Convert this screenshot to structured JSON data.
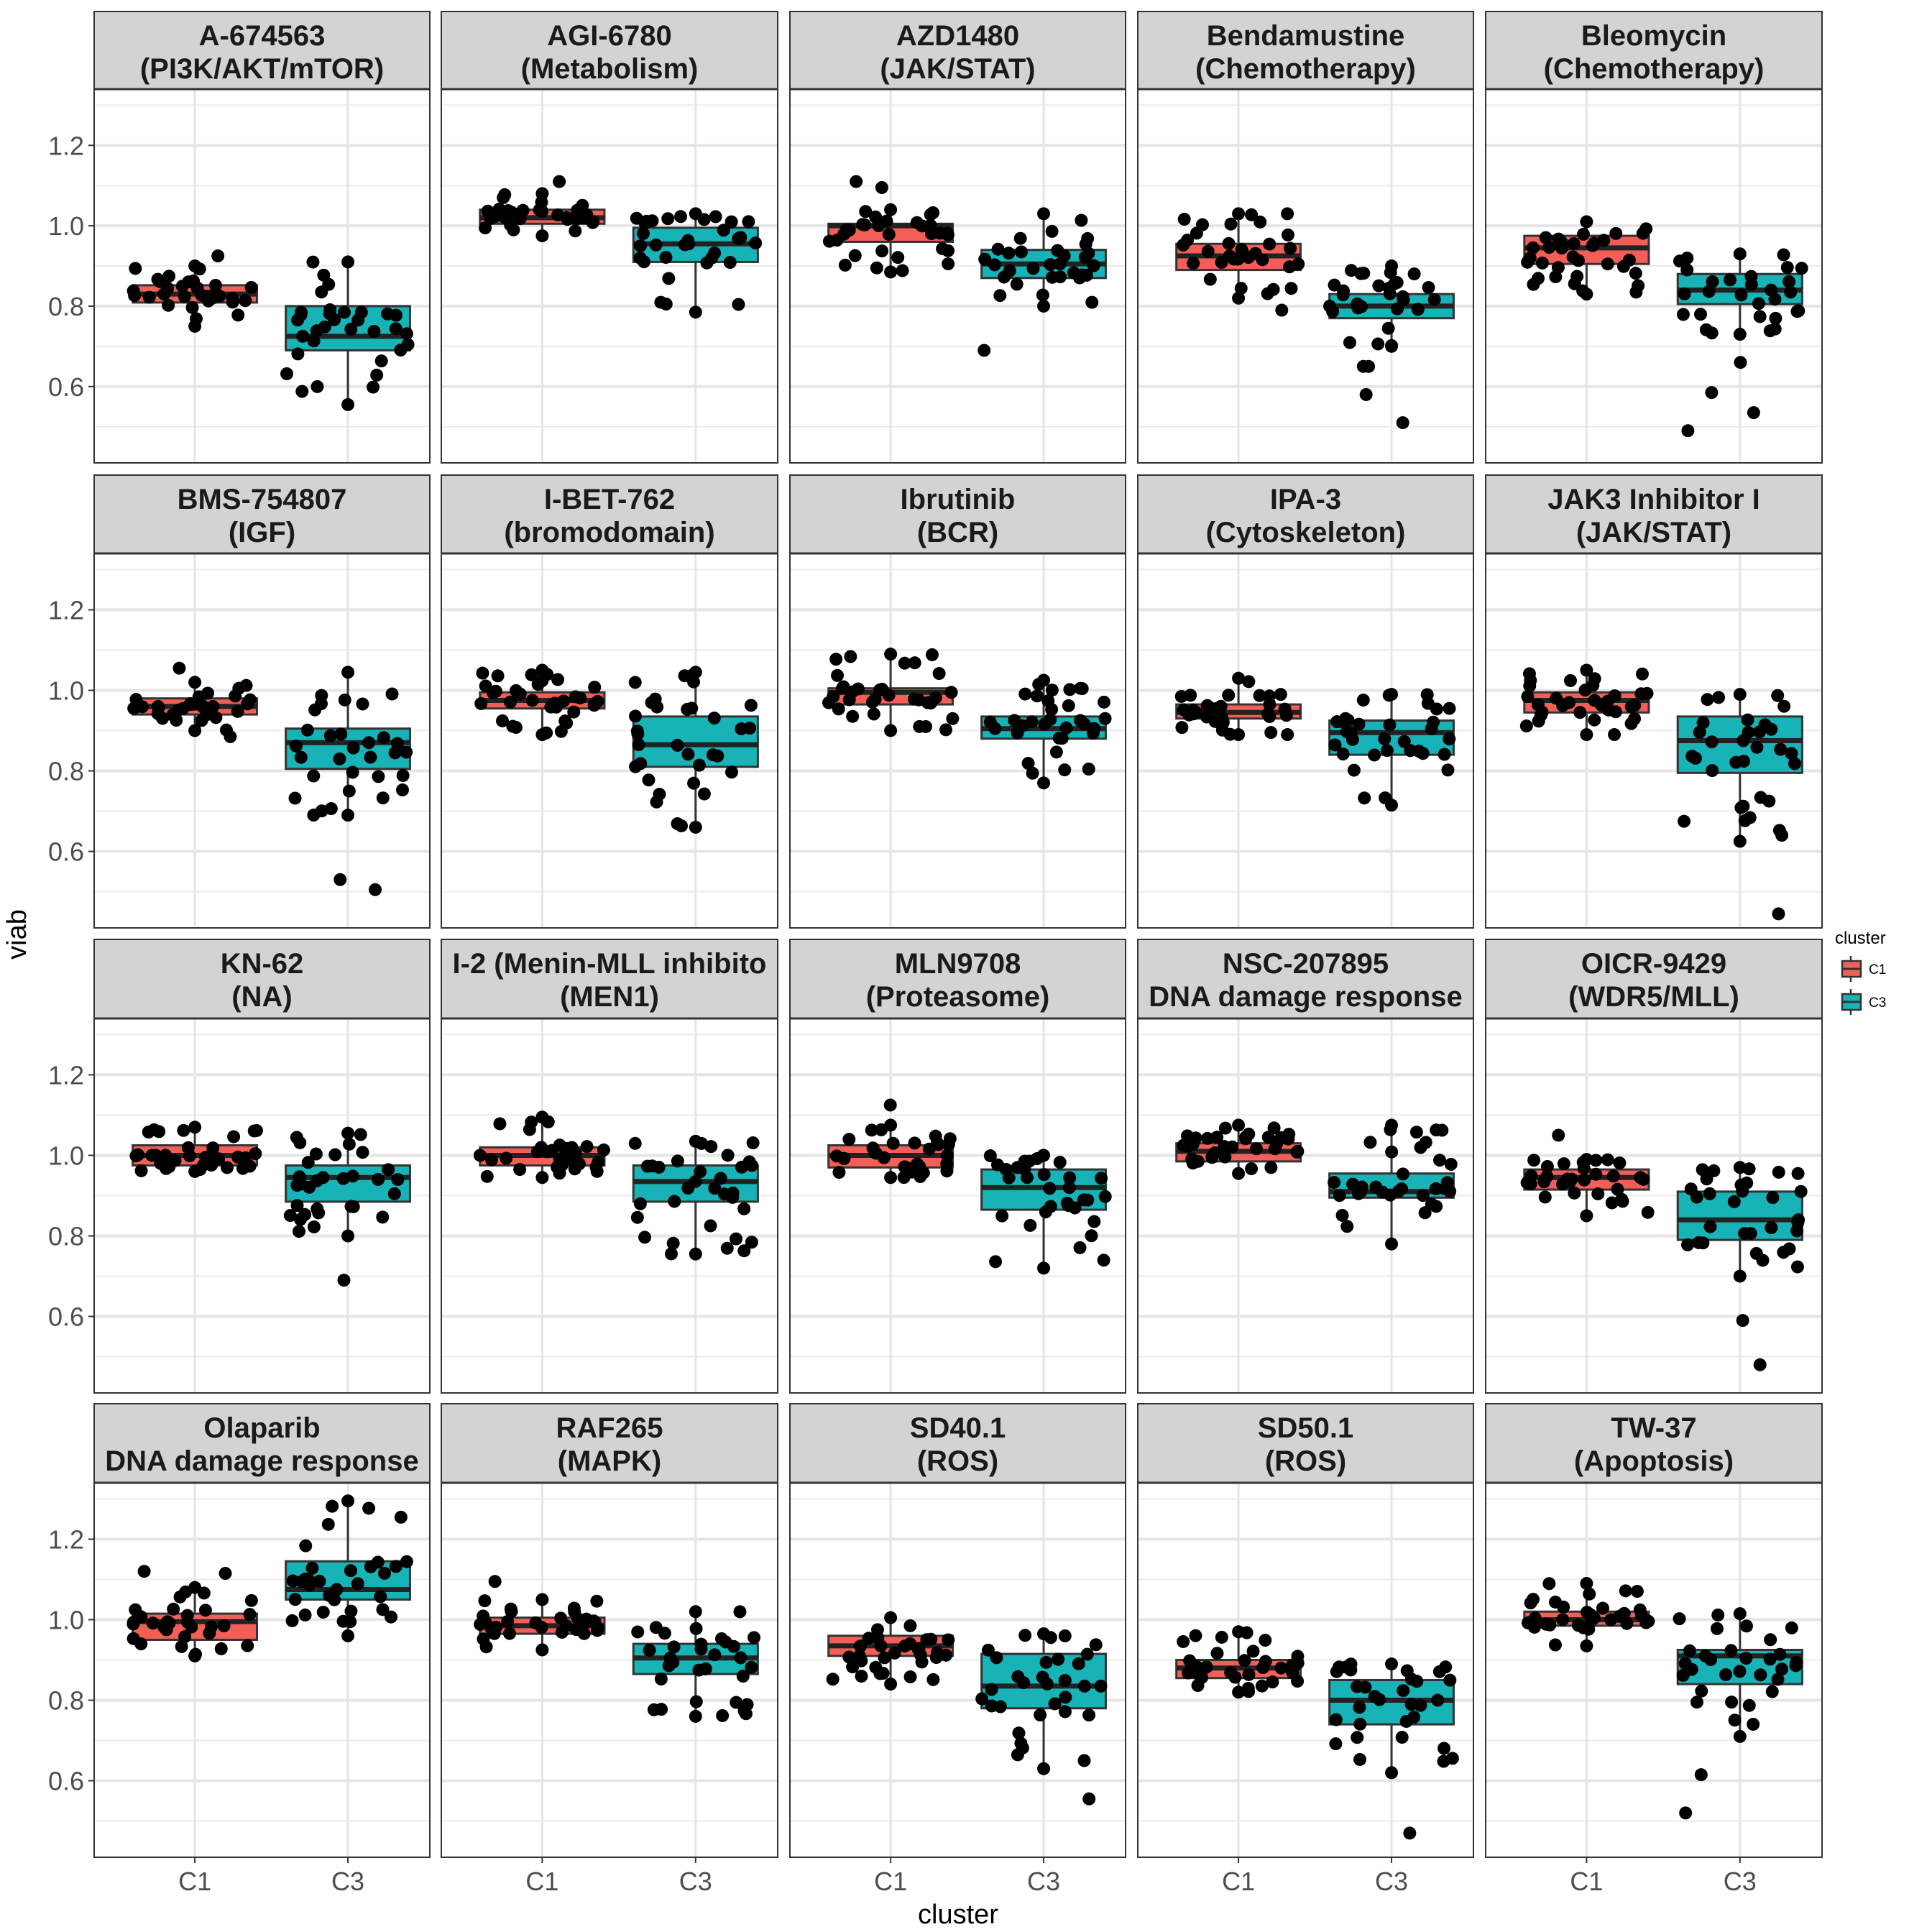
{
  "chart_data": {
    "type": "boxplot",
    "xlabel": "cluster",
    "ylabel": "viab",
    "ylim": [
      0.41,
      1.34
    ],
    "y_ticks": [
      0.6,
      0.8,
      1.0,
      1.2
    ],
    "y_tick_labels": [
      "0.6",
      "0.8",
      "1.0",
      "1.2"
    ],
    "categories": [
      "C1",
      "C3"
    ],
    "grid": true,
    "legend": {
      "title": "cluster",
      "position": "right",
      "entries": [
        {
          "label": "C1",
          "color": "#F8766D"
        },
        {
          "label": "C3",
          "color": "#00BFC4"
        }
      ]
    },
    "colors": {
      "C1": "#F35F57",
      "C3": "#17B3B6",
      "strip_bg": "#D3D3D3",
      "point": "#000000"
    },
    "panels": [
      {
        "drug": "A-674563",
        "pathway": "(PI3K/AKT/mTOR)",
        "groups": [
          {
            "cluster": "C1",
            "n": 34,
            "whisker_low": 0.75,
            "q1": 0.809,
            "median": 0.83,
            "q3": 0.852,
            "whisker_high": 0.9,
            "outliers": [
              0.925
            ]
          },
          {
            "cluster": "C3",
            "n": 34,
            "whisker_low": 0.555,
            "q1": 0.69,
            "median": 0.725,
            "q3": 0.8,
            "whisker_high": 0.91,
            "outliers": []
          }
        ]
      },
      {
        "drug": "AGI-6780",
        "pathway": "(Metabolism)",
        "groups": [
          {
            "cluster": "C1",
            "n": 34,
            "whisker_low": 0.975,
            "q1": 1.005,
            "median": 1.02,
            "q3": 1.04,
            "whisker_high": 1.08,
            "outliers": [
              1.11
            ]
          },
          {
            "cluster": "C3",
            "n": 34,
            "whisker_low": 0.785,
            "q1": 0.91,
            "median": 0.955,
            "q3": 0.995,
            "whisker_high": 1.03,
            "outliers": []
          }
        ]
      },
      {
        "drug": "AZD1480",
        "pathway": "(JAK/STAT)",
        "groups": [
          {
            "cluster": "C1",
            "n": 34,
            "whisker_low": 0.885,
            "q1": 0.96,
            "median": 1.0,
            "q3": 1.005,
            "whisker_high": 1.04,
            "outliers": [
              1.11,
              1.095
            ]
          },
          {
            "cluster": "C3",
            "n": 34,
            "whisker_low": 0.8,
            "q1": 0.87,
            "median": 0.905,
            "q3": 0.94,
            "whisker_high": 1.03,
            "outliers": [
              0.69
            ]
          }
        ]
      },
      {
        "drug": "Bendamustine",
        "pathway": "(Chemotherapy)",
        "groups": [
          {
            "cluster": "C1",
            "n": 34,
            "whisker_low": 0.82,
            "q1": 0.89,
            "median": 0.925,
            "q3": 0.955,
            "whisker_high": 1.03,
            "outliers": [
              0.79
            ]
          },
          {
            "cluster": "C3",
            "n": 34,
            "whisker_low": 0.7,
            "q1": 0.77,
            "median": 0.8,
            "q3": 0.83,
            "whisker_high": 0.9,
            "outliers": [
              0.65,
              0.65,
              0.58,
              0.51
            ]
          }
        ]
      },
      {
        "drug": "Bleomycin",
        "pathway": "(Chemotherapy)",
        "groups": [
          {
            "cluster": "C1",
            "n": 34,
            "whisker_low": 0.83,
            "q1": 0.905,
            "median": 0.945,
            "q3": 0.975,
            "whisker_high": 1.01,
            "outliers": []
          },
          {
            "cluster": "C3",
            "n": 34,
            "whisker_low": 0.73,
            "q1": 0.805,
            "median": 0.84,
            "q3": 0.88,
            "whisker_high": 0.93,
            "outliers": [
              0.66,
              0.585,
              0.535,
              0.49
            ]
          }
        ]
      },
      {
        "drug": "BMS-754807",
        "pathway": "(IGF)",
        "groups": [
          {
            "cluster": "C1",
            "n": 34,
            "whisker_low": 0.9,
            "q1": 0.94,
            "median": 0.96,
            "q3": 0.98,
            "whisker_high": 1.02,
            "outliers": [
              1.055,
              0.885
            ]
          },
          {
            "cluster": "C3",
            "n": 34,
            "whisker_low": 0.69,
            "q1": 0.805,
            "median": 0.87,
            "q3": 0.905,
            "whisker_high": 1.045,
            "outliers": [
              0.53,
              0.505
            ]
          }
        ]
      },
      {
        "drug": "I-BET-762",
        "pathway": "(bromodomain)",
        "groups": [
          {
            "cluster": "C1",
            "n": 34,
            "whisker_low": 0.89,
            "q1": 0.955,
            "median": 0.975,
            "q3": 0.995,
            "whisker_high": 1.05,
            "outliers": []
          },
          {
            "cluster": "C3",
            "n": 34,
            "whisker_low": 0.66,
            "q1": 0.81,
            "median": 0.865,
            "q3": 0.935,
            "whisker_high": 1.045,
            "outliers": []
          }
        ]
      },
      {
        "drug": "Ibrutinib",
        "pathway": "(BCR)",
        "groups": [
          {
            "cluster": "C1",
            "n": 34,
            "whisker_low": 0.9,
            "q1": 0.965,
            "median": 0.995,
            "q3": 1.005,
            "whisker_high": 1.09,
            "outliers": []
          },
          {
            "cluster": "C3",
            "n": 34,
            "whisker_low": 0.77,
            "q1": 0.88,
            "median": 0.905,
            "q3": 0.935,
            "whisker_high": 1.025,
            "outliers": []
          }
        ]
      },
      {
        "drug": "IPA-3",
        "pathway": "(Cytoskeleton)",
        "groups": [
          {
            "cluster": "C1",
            "n": 34,
            "whisker_low": 0.89,
            "q1": 0.93,
            "median": 0.945,
            "q3": 0.965,
            "whisker_high": 1.03,
            "outliers": []
          },
          {
            "cluster": "C3",
            "n": 34,
            "whisker_low": 0.715,
            "q1": 0.84,
            "median": 0.895,
            "q3": 0.925,
            "whisker_high": 0.99,
            "outliers": []
          }
        ]
      },
      {
        "drug": "JAK3 Inhibitor I",
        "pathway": "(JAK/STAT)",
        "groups": [
          {
            "cluster": "C1",
            "n": 34,
            "whisker_low": 0.89,
            "q1": 0.945,
            "median": 0.975,
            "q3": 0.995,
            "whisker_high": 1.05,
            "outliers": []
          },
          {
            "cluster": "C3",
            "n": 34,
            "whisker_low": 0.625,
            "q1": 0.795,
            "median": 0.875,
            "q3": 0.935,
            "whisker_high": 0.99,
            "outliers": [
              0.445
            ]
          }
        ]
      },
      {
        "drug": "KN-62",
        "pathway": "(NA)",
        "groups": [
          {
            "cluster": "C1",
            "n": 34,
            "whisker_low": 0.96,
            "q1": 0.975,
            "median": 1.0,
            "q3": 1.025,
            "whisker_high": 1.07,
            "outliers": []
          },
          {
            "cluster": "C3",
            "n": 34,
            "whisker_low": 0.8,
            "q1": 0.885,
            "median": 0.945,
            "q3": 0.975,
            "whisker_high": 1.055,
            "outliers": [
              0.69
            ]
          }
        ]
      },
      {
        "drug": "I-2 (Menin-MLL inhibito",
        "pathway": "(MEN1)",
        "groups": [
          {
            "cluster": "C1",
            "n": 34,
            "whisker_low": 0.945,
            "q1": 0.975,
            "median": 1.0,
            "q3": 1.02,
            "whisker_high": 1.095,
            "outliers": []
          },
          {
            "cluster": "C3",
            "n": 34,
            "whisker_low": 0.755,
            "q1": 0.885,
            "median": 0.935,
            "q3": 0.975,
            "whisker_high": 1.035,
            "outliers": []
          }
        ]
      },
      {
        "drug": "MLN9708",
        "pathway": "(Proteasome)",
        "groups": [
          {
            "cluster": "C1",
            "n": 34,
            "whisker_low": 0.945,
            "q1": 0.97,
            "median": 1.0,
            "q3": 1.025,
            "whisker_high": 1.075,
            "outliers": [
              1.125
            ]
          },
          {
            "cluster": "C3",
            "n": 34,
            "whisker_low": 0.72,
            "q1": 0.865,
            "median": 0.92,
            "q3": 0.965,
            "whisker_high": 1.0,
            "outliers": []
          }
        ]
      },
      {
        "drug": "NSC-207895",
        "pathway": "DNA damage response",
        "groups": [
          {
            "cluster": "C1",
            "n": 34,
            "whisker_low": 0.955,
            "q1": 0.985,
            "median": 1.01,
            "q3": 1.03,
            "whisker_high": 1.075,
            "outliers": []
          },
          {
            "cluster": "C3",
            "n": 34,
            "whisker_low": 0.78,
            "q1": 0.895,
            "median": 0.91,
            "q3": 0.955,
            "whisker_high": 1.075,
            "outliers": []
          }
        ]
      },
      {
        "drug": "OICR-9429",
        "pathway": "(WDR5/MLL)",
        "groups": [
          {
            "cluster": "C1",
            "n": 34,
            "whisker_low": 0.85,
            "q1": 0.915,
            "median": 0.945,
            "q3": 0.965,
            "whisker_high": 0.99,
            "outliers": [
              1.05
            ]
          },
          {
            "cluster": "C3",
            "n": 34,
            "whisker_low": 0.7,
            "q1": 0.79,
            "median": 0.84,
            "q3": 0.91,
            "whisker_high": 0.97,
            "outliers": [
              0.59,
              0.48
            ]
          }
        ]
      },
      {
        "drug": "Olaparib",
        "pathway": "DNA damage response",
        "groups": [
          {
            "cluster": "C1",
            "n": 34,
            "whisker_low": 0.91,
            "q1": 0.95,
            "median": 0.995,
            "q3": 1.015,
            "whisker_high": 1.08,
            "outliers": [
              1.12,
              1.115
            ]
          },
          {
            "cluster": "C3",
            "n": 34,
            "whisker_low": 0.96,
            "q1": 1.05,
            "median": 1.075,
            "q3": 1.145,
            "whisker_high": 1.295,
            "outliers": []
          }
        ]
      },
      {
        "drug": "RAF265",
        "pathway": "(MAPK)",
        "groups": [
          {
            "cluster": "C1",
            "n": 34,
            "whisker_low": 0.925,
            "q1": 0.965,
            "median": 0.985,
            "q3": 1.005,
            "whisker_high": 1.05,
            "outliers": [
              1.095
            ]
          },
          {
            "cluster": "C3",
            "n": 34,
            "whisker_low": 0.76,
            "q1": 0.865,
            "median": 0.905,
            "q3": 0.94,
            "whisker_high": 1.02,
            "outliers": []
          }
        ]
      },
      {
        "drug": "SD40.1",
        "pathway": "(ROS)",
        "groups": [
          {
            "cluster": "C1",
            "n": 34,
            "whisker_low": 0.84,
            "q1": 0.91,
            "median": 0.935,
            "q3": 0.96,
            "whisker_high": 1.005,
            "outliers": []
          },
          {
            "cluster": "C3",
            "n": 34,
            "whisker_low": 0.63,
            "q1": 0.78,
            "median": 0.835,
            "q3": 0.915,
            "whisker_high": 0.965,
            "outliers": [
              0.555
            ]
          }
        ]
      },
      {
        "drug": "SD50.1",
        "pathway": "(ROS)",
        "groups": [
          {
            "cluster": "C1",
            "n": 34,
            "whisker_low": 0.82,
            "q1": 0.855,
            "median": 0.88,
            "q3": 0.9,
            "whisker_high": 0.97,
            "outliers": []
          },
          {
            "cluster": "C3",
            "n": 34,
            "whisker_low": 0.62,
            "q1": 0.74,
            "median": 0.8,
            "q3": 0.85,
            "whisker_high": 0.89,
            "outliers": [
              0.47
            ]
          }
        ]
      },
      {
        "drug": "TW-37",
        "pathway": "(Apoptosis)",
        "groups": [
          {
            "cluster": "C1",
            "n": 34,
            "whisker_low": 0.935,
            "q1": 0.985,
            "median": 1.0,
            "q3": 1.02,
            "whisker_high": 1.09,
            "outliers": []
          },
          {
            "cluster": "C3",
            "n": 34,
            "whisker_low": 0.71,
            "q1": 0.84,
            "median": 0.91,
            "q3": 0.925,
            "whisker_high": 1.015,
            "outliers": [
              0.615,
              0.52
            ]
          }
        ]
      }
    ]
  }
}
